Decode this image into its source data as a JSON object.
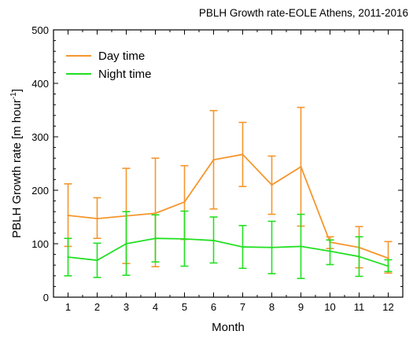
{
  "chart_data": {
    "type": "line",
    "title": "PBLH Growth rate-EOLE Athens, 2011-2016",
    "xlabel": "Month",
    "ylabel_main": "PBLH Growth rate [m hour",
    "ylabel_sup": "-1",
    "ylabel_close": "]",
    "x": [
      1,
      2,
      3,
      4,
      5,
      6,
      7,
      8,
      9,
      10,
      11,
      12
    ],
    "x_ticks": [
      "1",
      "2",
      "3",
      "4",
      "5",
      "6",
      "7",
      "8",
      "9",
      "10",
      "11",
      "12"
    ],
    "y_ticks": [
      "0",
      "100",
      "200",
      "300",
      "400",
      "500"
    ],
    "xlim": [
      0.5,
      12.5
    ],
    "ylim": [
      0,
      500
    ],
    "grid": false,
    "legend_position": "top-left",
    "series": [
      {
        "name": "Day time",
        "color": "#F5962D",
        "values": [
          153,
          147,
          152,
          157,
          178,
          257,
          267,
          210,
          244,
          103,
          93,
          73
        ],
        "err_high": [
          212,
          186,
          241,
          260,
          246,
          349,
          327,
          264,
          355,
          113,
          132,
          104
        ],
        "err_low": [
          95,
          110,
          63,
          57,
          108,
          165,
          207,
          155,
          133,
          91,
          55,
          45
        ]
      },
      {
        "name": "Night time",
        "color": "#22E022",
        "values": [
          75,
          69,
          100,
          110,
          109,
          106,
          94,
          93,
          95,
          86,
          76,
          58
        ],
        "err_high": [
          110,
          101,
          160,
          154,
          161,
          150,
          134,
          142,
          155,
          107,
          113,
          70
        ],
        "err_low": [
          40,
          37,
          41,
          66,
          58,
          64,
          54,
          44,
          35,
          61,
          39,
          48
        ]
      }
    ]
  }
}
